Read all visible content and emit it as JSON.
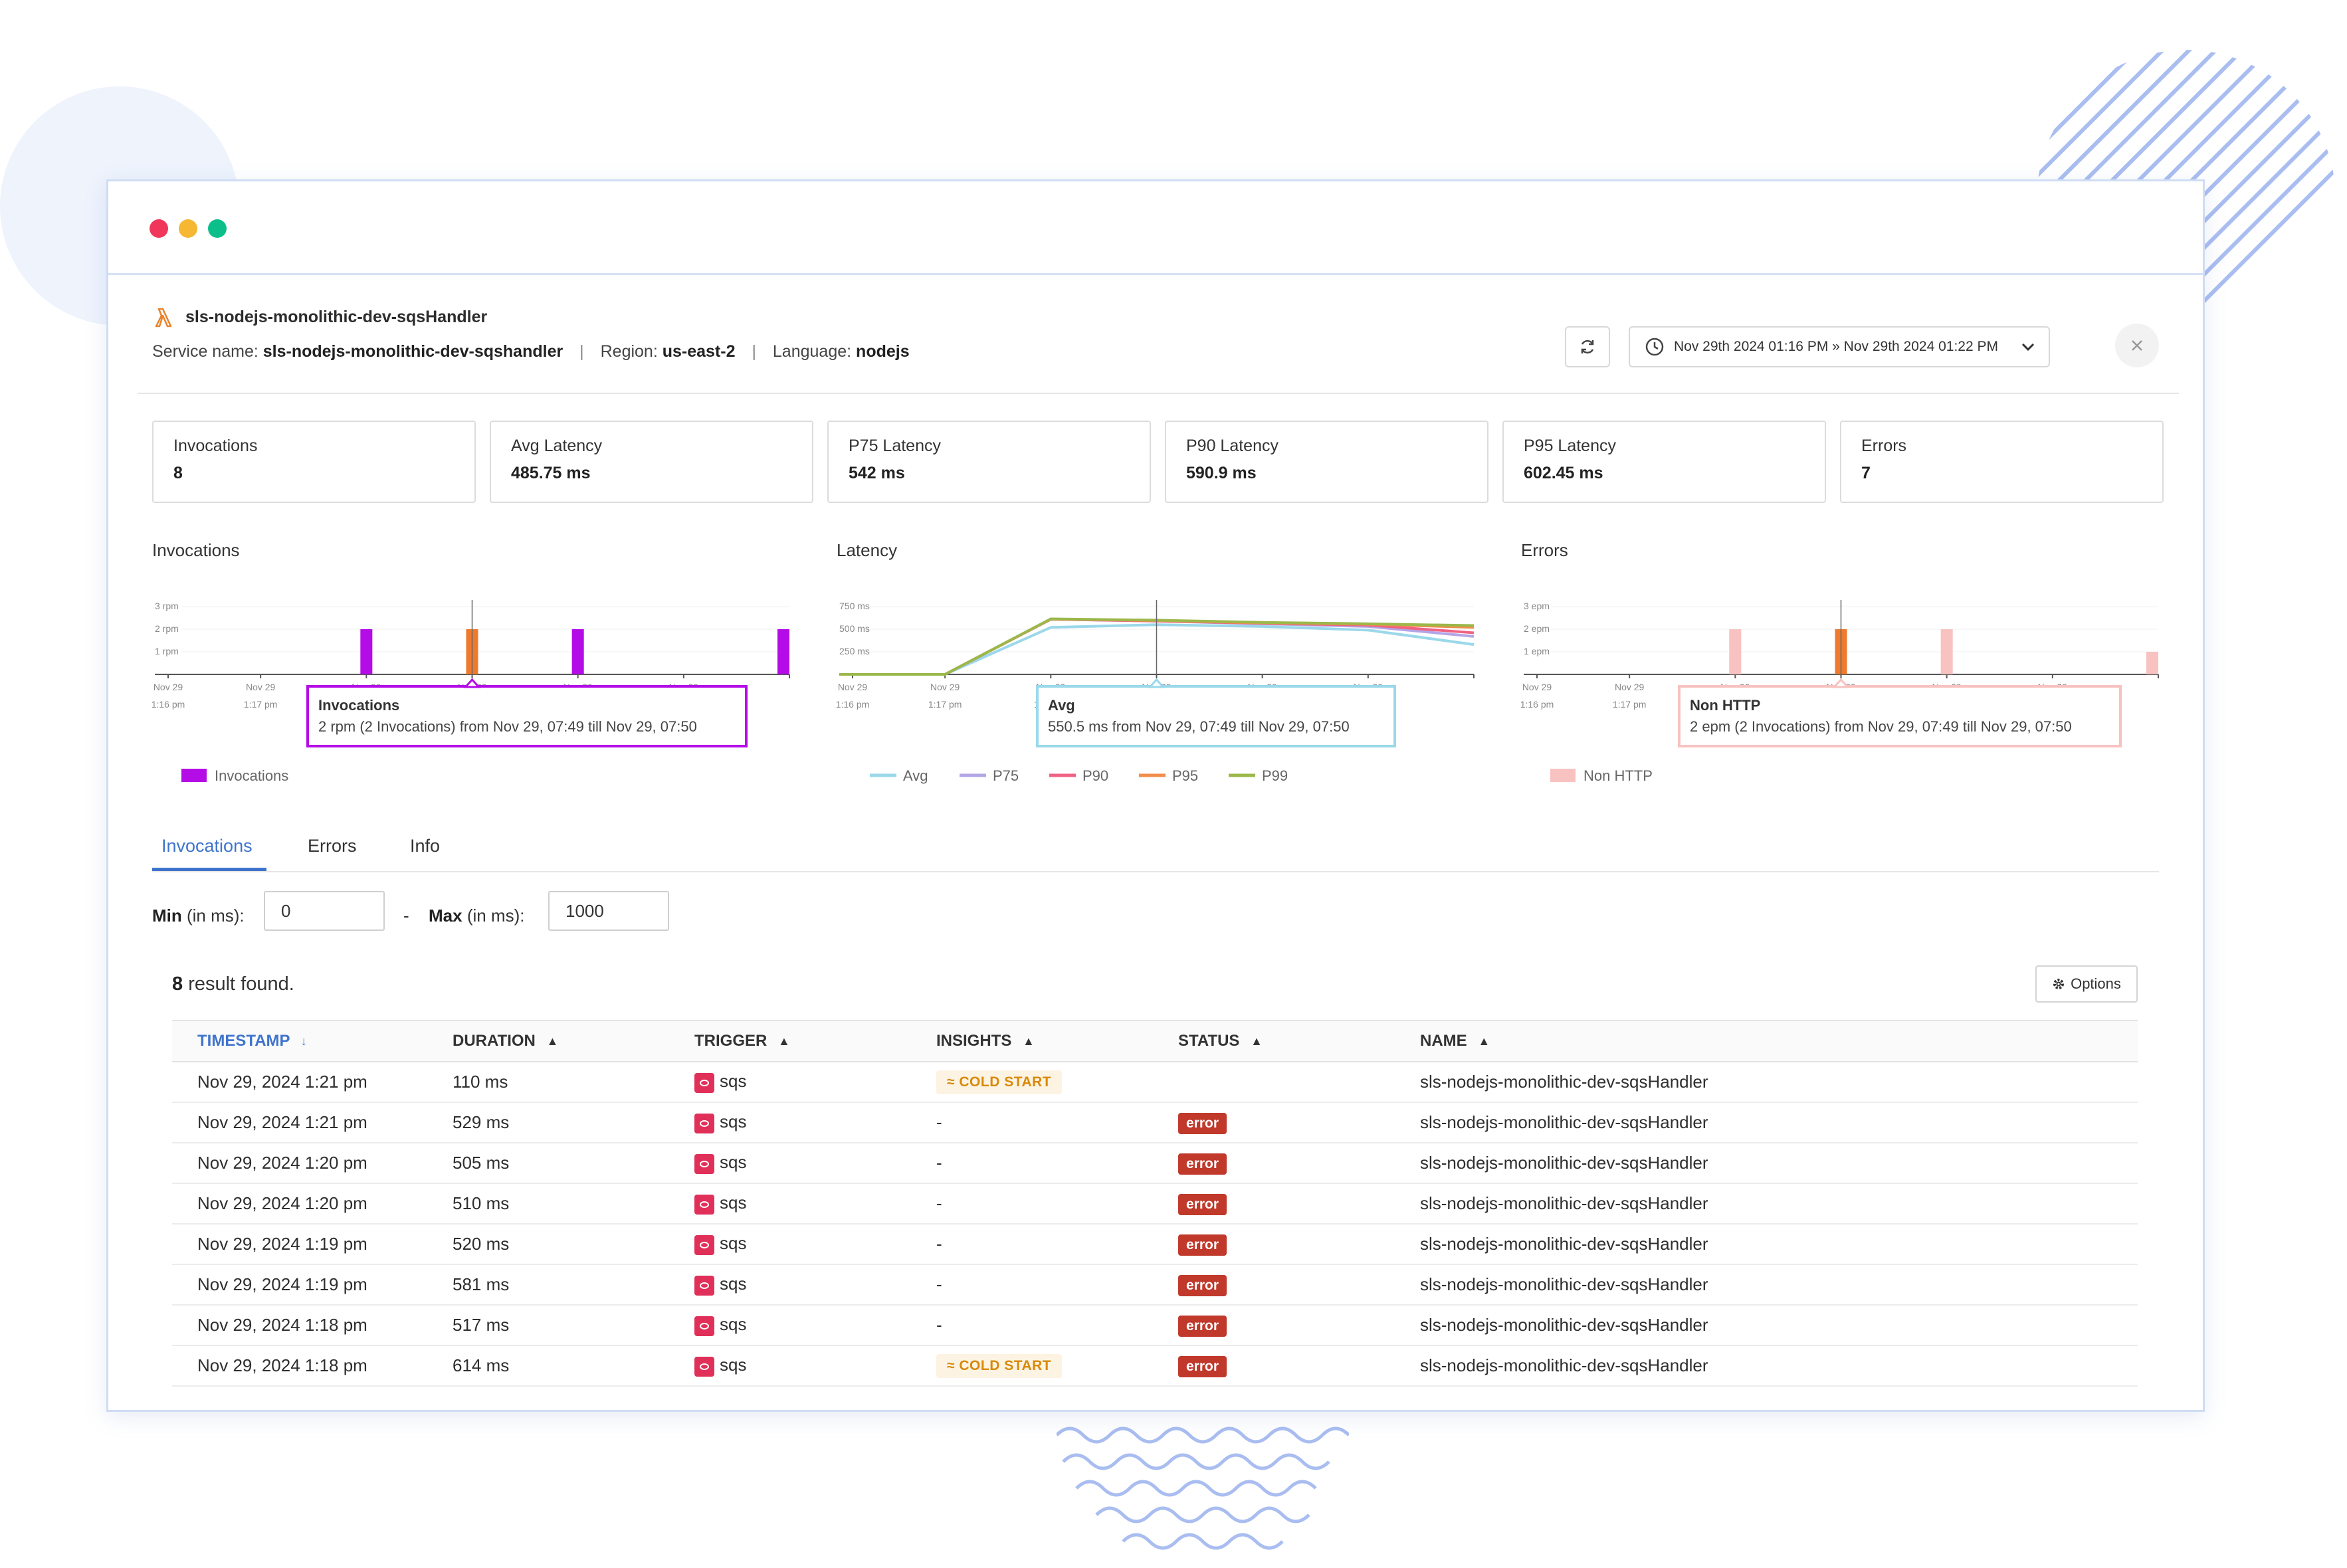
{
  "service": {
    "title": "sls-nodejs-monolithic-dev-sqsHandler",
    "service_name_label": "Service name:",
    "service_name": "sls-nodejs-monolithic-dev-sqshandler",
    "region_label": "Region:",
    "region": "us-east-2",
    "language_label": "Language:",
    "language": "nodejs",
    "separator": "|"
  },
  "toolbar": {
    "date_range": "Nov 29th 2024 01:16 PM » Nov 29th 2024 01:22 PM"
  },
  "metrics": [
    {
      "label": "Invocations",
      "value": "8"
    },
    {
      "label": "Avg Latency",
      "value": "485.75 ms"
    },
    {
      "label": "P75 Latency",
      "value": "542 ms"
    },
    {
      "label": "P90 Latency",
      "value": "590.9 ms"
    },
    {
      "label": "P95 Latency",
      "value": "602.45 ms"
    },
    {
      "label": "Errors",
      "value": "7"
    }
  ],
  "chart_data": [
    {
      "type": "bar",
      "title": "Invocations",
      "y_ticks": [
        "3 rpm",
        "2 rpm",
        "1 rpm"
      ],
      "ylim": [
        0,
        3
      ],
      "x_ticks": [
        {
          "date": "Nov 29",
          "time": "1:16 pm"
        },
        {
          "date": "Nov 29",
          "time": "1:17 pm"
        },
        {
          "date": "Nov 29",
          "time": "1:18 pm"
        },
        {
          "date": "Nov 29",
          "time": "1:19 pm"
        },
        {
          "date": "Nov 29",
          "time": "1:20 pm"
        },
        {
          "date": "Nov 29",
          "time": "1:21 pm"
        }
      ],
      "series": [
        {
          "name": "Invocations",
          "color": "#b40ce6",
          "x": [
            2,
            3,
            4,
            5
          ],
          "values": [
            2,
            2,
            2,
            2
          ],
          "highlight_index": 1,
          "highlight_color": "#ef7a2d"
        }
      ],
      "tooltip": {
        "title": "Invocations",
        "text": "2 rpm (2 Invocations) from Nov 29, 07:49 till Nov 29, 07:50"
      },
      "legend": [
        {
          "name": "Invocations",
          "color": "#b40ce6"
        }
      ]
    },
    {
      "type": "line",
      "title": "Latency",
      "y_ticks": [
        "750 ms",
        "500 ms",
        "250 ms"
      ],
      "ylim": [
        0,
        750
      ],
      "x_ticks": [
        {
          "date": "Nov 29",
          "time": "1:16 pm"
        },
        {
          "date": "Nov 29",
          "time": "1:17 pm"
        },
        {
          "date": "Nov 29",
          "time": "1:18 pm"
        },
        {
          "date": "Nov 29",
          "time": "1:19 pm"
        },
        {
          "date": "Nov 29",
          "time": "1:20 pm"
        },
        {
          "date": "Nov 29",
          "time": "1:21 pm"
        }
      ],
      "series": [
        {
          "name": "Avg",
          "color": "#9ad8ea",
          "x": [
            0,
            1,
            2,
            3,
            4,
            5,
            6
          ],
          "values": [
            0,
            0,
            520,
            550,
            530,
            490,
            330
          ]
        },
        {
          "name": "P75",
          "color": "#b3a6e6",
          "x": [
            0,
            1,
            2,
            3,
            4,
            5,
            6
          ],
          "values": [
            0,
            0,
            610,
            590,
            560,
            530,
            420
          ]
        },
        {
          "name": "P90",
          "color": "#f06283",
          "x": [
            0,
            1,
            2,
            3,
            4,
            5,
            6
          ],
          "values": [
            0,
            0,
            610,
            590,
            565,
            545,
            460
          ]
        },
        {
          "name": "P95",
          "color": "#f28d4a",
          "x": [
            0,
            1,
            2,
            3,
            4,
            5,
            6
          ],
          "values": [
            0,
            0,
            612,
            595,
            570,
            555,
            520
          ]
        },
        {
          "name": "P99",
          "color": "#9bb84a",
          "x": [
            0,
            1,
            2,
            3,
            4,
            5,
            6
          ],
          "values": [
            0,
            0,
            614,
            600,
            575,
            560,
            540
          ]
        }
      ],
      "tooltip": {
        "title": "Avg",
        "text": "550.5 ms from Nov 29, 07:49 till Nov 29, 07:50"
      },
      "legend": [
        {
          "name": "Avg",
          "color": "#9ad8ea"
        },
        {
          "name": "P75",
          "color": "#b3a6e6"
        },
        {
          "name": "P90",
          "color": "#f06283"
        },
        {
          "name": "P95",
          "color": "#f28d4a"
        },
        {
          "name": "P99",
          "color": "#9bb84a"
        }
      ]
    },
    {
      "type": "bar",
      "title": "Errors",
      "y_ticks": [
        "3 epm",
        "2 epm",
        "1 epm"
      ],
      "ylim": [
        0,
        3
      ],
      "x_ticks": [
        {
          "date": "Nov 29",
          "time": "1:16 pm"
        },
        {
          "date": "Nov 29",
          "time": "1:17 pm"
        },
        {
          "date": "Nov 29",
          "time": "1:18 pm"
        },
        {
          "date": "Nov 29",
          "time": "1:19 pm"
        },
        {
          "date": "Nov 29",
          "time": "1:20 pm"
        },
        {
          "date": "Nov 29",
          "time": "1:21 pm"
        }
      ],
      "series": [
        {
          "name": "Non HTTP",
          "color": "#f7c2c0",
          "x": [
            2,
            3,
            4,
            5
          ],
          "values": [
            2,
            2,
            2,
            1
          ],
          "highlight_index": 1,
          "highlight_color": "#ef7a2d"
        }
      ],
      "tooltip": {
        "title": "Non HTTP",
        "text": "2 epm (2 Invocations) from Nov 29, 07:49 till Nov 29, 07:50"
      },
      "legend": [
        {
          "name": "Non HTTP",
          "color": "#f7c2c0"
        }
      ]
    }
  ],
  "tabs": [
    {
      "label": "Invocations",
      "active": true
    },
    {
      "label": "Errors",
      "active": false
    },
    {
      "label": "Info",
      "active": false
    }
  ],
  "filters": {
    "min_label": "Min",
    "min_unit": "(in ms):",
    "min_value": "0",
    "dash": "-",
    "max_label": "Max",
    "max_unit": "(in ms):",
    "max_value": "1000"
  },
  "results": {
    "count": "8",
    "suffix": "result found.",
    "options_label": "Options"
  },
  "table": {
    "columns": [
      "TIMESTAMP",
      "DURATION",
      "TRIGGER",
      "INSIGHTS",
      "STATUS",
      "NAME"
    ],
    "rows": [
      {
        "timestamp": "Nov 29, 2024 1:21 pm",
        "duration": "110 ms",
        "trigger": "sqs",
        "insights": "COLD START",
        "status": "",
        "name": "sls-nodejs-monolithic-dev-sqsHandler"
      },
      {
        "timestamp": "Nov 29, 2024 1:21 pm",
        "duration": "529 ms",
        "trigger": "sqs",
        "insights": "-",
        "status": "error",
        "name": "sls-nodejs-monolithic-dev-sqsHandler"
      },
      {
        "timestamp": "Nov 29, 2024 1:20 pm",
        "duration": "505 ms",
        "trigger": "sqs",
        "insights": "-",
        "status": "error",
        "name": "sls-nodejs-monolithic-dev-sqsHandler"
      },
      {
        "timestamp": "Nov 29, 2024 1:20 pm",
        "duration": "510 ms",
        "trigger": "sqs",
        "insights": "-",
        "status": "error",
        "name": "sls-nodejs-monolithic-dev-sqsHandler"
      },
      {
        "timestamp": "Nov 29, 2024 1:19 pm",
        "duration": "520 ms",
        "trigger": "sqs",
        "insights": "-",
        "status": "error",
        "name": "sls-nodejs-monolithic-dev-sqsHandler"
      },
      {
        "timestamp": "Nov 29, 2024 1:19 pm",
        "duration": "581 ms",
        "trigger": "sqs",
        "insights": "-",
        "status": "error",
        "name": "sls-nodejs-monolithic-dev-sqsHandler"
      },
      {
        "timestamp": "Nov 29, 2024 1:18 pm",
        "duration": "517 ms",
        "trigger": "sqs",
        "insights": "-",
        "status": "error",
        "name": "sls-nodejs-monolithic-dev-sqsHandler"
      },
      {
        "timestamp": "Nov 29, 2024 1:18 pm",
        "duration": "614 ms",
        "trigger": "sqs",
        "insights": "COLD START",
        "status": "error",
        "name": "sls-nodejs-monolithic-dev-sqsHandler"
      }
    ]
  }
}
